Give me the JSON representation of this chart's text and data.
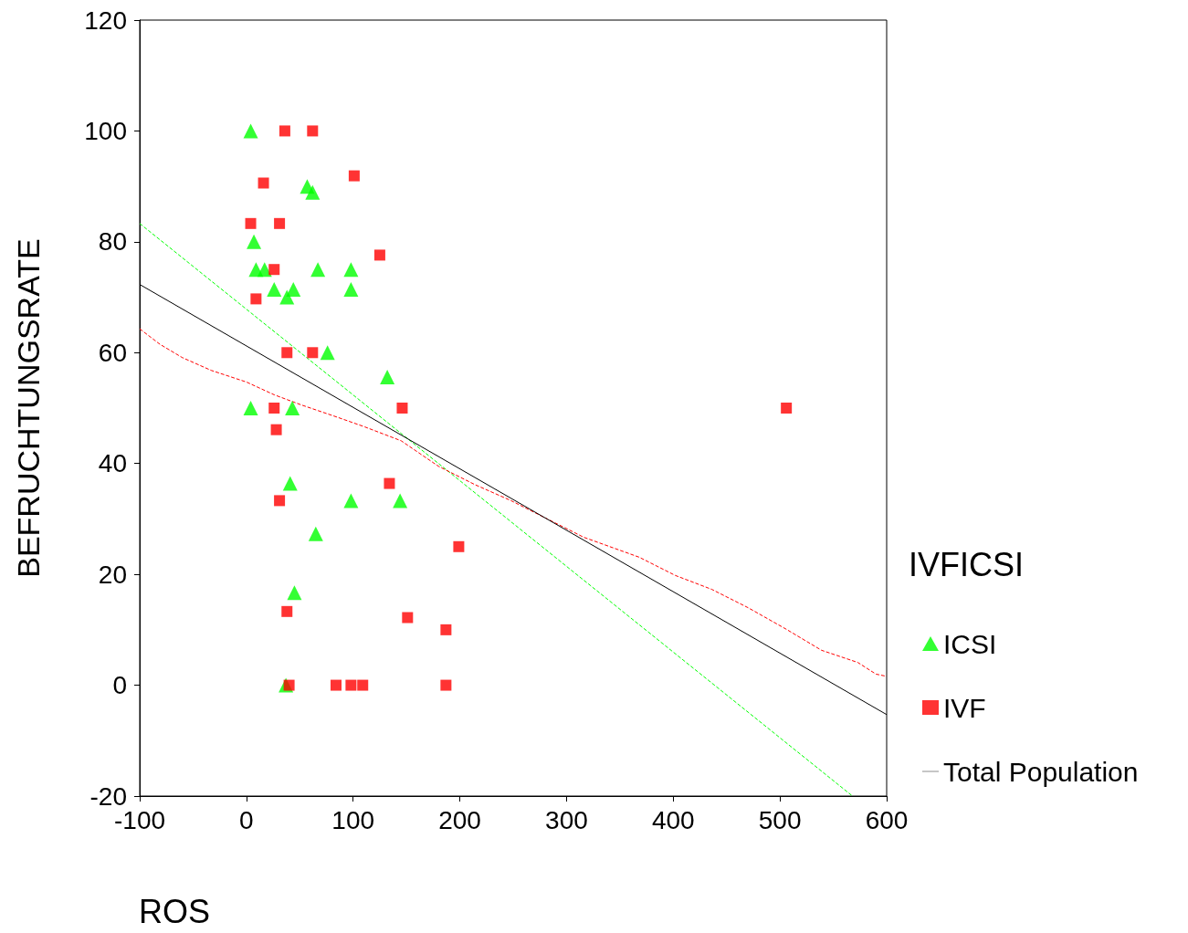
{
  "chart_data": {
    "type": "scatter",
    "xlabel": "ROS",
    "ylabel": "BEFRUCHTUNGSRATE",
    "legend_title": "IVFICSI",
    "legend": "right",
    "grid": false,
    "xlim": [
      -100,
      600
    ],
    "xticks": [
      -100,
      0,
      100,
      200,
      300,
      400,
      500,
      600
    ],
    "ylim": [
      -20,
      120
    ],
    "yticks": [
      -20,
      0,
      20,
      40,
      60,
      80,
      100,
      120
    ],
    "series": [
      {
        "name": "ICSI",
        "marker": "triangle",
        "color": "#00ff00",
        "x": [
          4,
          7,
          9,
          17,
          26,
          38,
          44,
          57,
          62,
          67,
          98,
          98,
          76,
          132,
          4,
          43,
          41,
          98,
          144,
          65,
          45,
          37
        ],
        "values": [
          100,
          80,
          75,
          75,
          71.4,
          70,
          71.4,
          90,
          88.9,
          75,
          75,
          71.4,
          60,
          55.6,
          50,
          50,
          36.4,
          33.3,
          33.3,
          27.3,
          16.7,
          0
        ]
      },
      {
        "name": "IVF",
        "marker": "square",
        "color": "#ff0000",
        "x": [
          36,
          62,
          101,
          16,
          4,
          31,
          125,
          26,
          9,
          38,
          62,
          26,
          146,
          506,
          28,
          134,
          31,
          199,
          38,
          151,
          187,
          40,
          84,
          98,
          109,
          187
        ],
        "values": [
          100,
          100,
          91.9,
          90.6,
          83.3,
          83.3,
          77.6,
          75,
          69.7,
          60,
          60,
          50,
          50,
          50,
          46.1,
          36.4,
          33.3,
          25,
          13.3,
          12.2,
          10,
          0,
          0,
          0,
          0,
          0
        ]
      },
      {
        "type": "line",
        "marker": "none",
        "line_style": "dashed",
        "color": "#00ff00",
        "x": [
          -100,
          568
        ],
        "values": [
          83.3,
          -20
        ]
      },
      {
        "type": "line",
        "marker": "none",
        "line_style": "dashed",
        "color": "#ff0000",
        "x": [
          -100,
          -81,
          -60,
          -33,
          0,
          26,
          51,
          86,
          111,
          145,
          180,
          214,
          248,
          282,
          316,
          368,
          402,
          436,
          470,
          505,
          539,
          573,
          590,
          600
        ],
        "values": [
          64.3,
          61.5,
          59.1,
          56.8,
          54.7,
          52.4,
          50.6,
          48.3,
          46.6,
          44.1,
          39.5,
          36.2,
          33.3,
          30,
          26.7,
          23.1,
          19.8,
          17.3,
          14,
          10.2,
          6.3,
          4.1,
          2,
          1.6
        ]
      },
      {
        "name": "Total Population",
        "type": "line",
        "marker": "none",
        "line_style": "solid",
        "color": "#000000",
        "x": [
          -100,
          600
        ],
        "values": [
          72.3,
          -5.3
        ]
      }
    ]
  }
}
